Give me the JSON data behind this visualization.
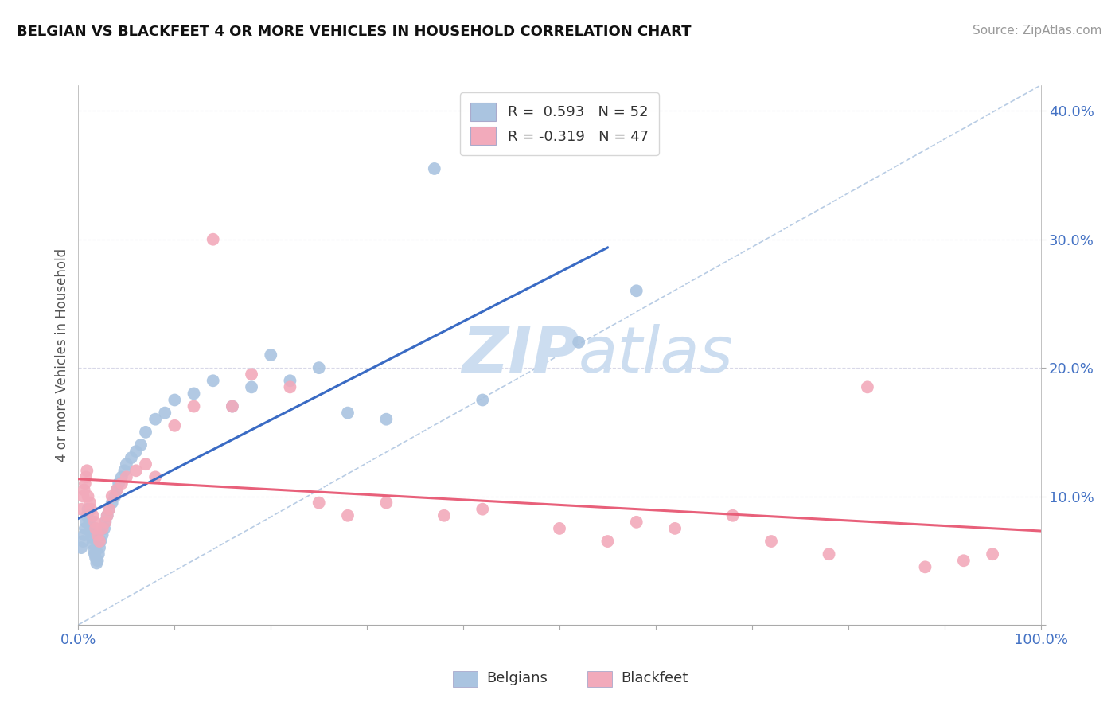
{
  "title": "BELGIAN VS BLACKFEET 4 OR MORE VEHICLES IN HOUSEHOLD CORRELATION CHART",
  "source": "Source: ZipAtlas.com",
  "ylabel": "4 or more Vehicles in Household",
  "xlim": [
    0,
    1.0
  ],
  "ylim": [
    0,
    0.42
  ],
  "xtick_positions": [
    0.0,
    0.1,
    0.2,
    0.3,
    0.4,
    0.5,
    0.6,
    0.7,
    0.8,
    0.9,
    1.0
  ],
  "ytick_positions": [
    0.0,
    0.1,
    0.2,
    0.3,
    0.4
  ],
  "legend_r_belgian": "0.593",
  "legend_n_belgian": "52",
  "legend_r_blackfeet": "-0.319",
  "legend_n_blackfeet": "47",
  "belgian_color": "#aac4e0",
  "blackfeet_color": "#f2aabb",
  "belgian_line_color": "#3a6bc4",
  "blackfeet_line_color": "#e8607a",
  "diag_line_color": "#b8cce4",
  "watermark_color": "#ccddf0",
  "grid_color": "#d8d8e8",
  "belgian_x": [
    0.003,
    0.005,
    0.006,
    0.007,
    0.008,
    0.009,
    0.01,
    0.011,
    0.012,
    0.013,
    0.014,
    0.015,
    0.016,
    0.017,
    0.018,
    0.019,
    0.02,
    0.021,
    0.022,
    0.023,
    0.025,
    0.027,
    0.028,
    0.03,
    0.032,
    0.035,
    0.038,
    0.04,
    0.042,
    0.045,
    0.048,
    0.05,
    0.055,
    0.06,
    0.065,
    0.07,
    0.08,
    0.09,
    0.1,
    0.12,
    0.14,
    0.16,
    0.18,
    0.2,
    0.22,
    0.25,
    0.28,
    0.32,
    0.37,
    0.42,
    0.52,
    0.58
  ],
  "belgian_y": [
    0.06,
    0.065,
    0.07,
    0.075,
    0.08,
    0.085,
    0.09,
    0.082,
    0.078,
    0.072,
    0.068,
    0.063,
    0.058,
    0.055,
    0.052,
    0.048,
    0.05,
    0.055,
    0.06,
    0.065,
    0.07,
    0.075,
    0.08,
    0.085,
    0.09,
    0.095,
    0.1,
    0.105,
    0.11,
    0.115,
    0.12,
    0.125,
    0.13,
    0.135,
    0.14,
    0.15,
    0.16,
    0.165,
    0.175,
    0.18,
    0.19,
    0.17,
    0.185,
    0.21,
    0.19,
    0.2,
    0.165,
    0.16,
    0.355,
    0.175,
    0.22,
    0.26
  ],
  "blackfeet_x": [
    0.003,
    0.005,
    0.006,
    0.007,
    0.008,
    0.009,
    0.01,
    0.012,
    0.013,
    0.015,
    0.017,
    0.018,
    0.02,
    0.022,
    0.025,
    0.028,
    0.03,
    0.032,
    0.035,
    0.04,
    0.045,
    0.05,
    0.06,
    0.07,
    0.08,
    0.1,
    0.12,
    0.14,
    0.16,
    0.18,
    0.22,
    0.25,
    0.28,
    0.32,
    0.38,
    0.42,
    0.5,
    0.55,
    0.58,
    0.62,
    0.68,
    0.72,
    0.78,
    0.82,
    0.88,
    0.92,
    0.95
  ],
  "blackfeet_y": [
    0.09,
    0.1,
    0.105,
    0.11,
    0.115,
    0.12,
    0.1,
    0.095,
    0.09,
    0.085,
    0.08,
    0.075,
    0.07,
    0.065,
    0.075,
    0.08,
    0.085,
    0.09,
    0.1,
    0.105,
    0.11,
    0.115,
    0.12,
    0.125,
    0.115,
    0.155,
    0.17,
    0.3,
    0.17,
    0.195,
    0.185,
    0.095,
    0.085,
    0.095,
    0.085,
    0.09,
    0.075,
    0.065,
    0.08,
    0.075,
    0.085,
    0.065,
    0.055,
    0.185,
    0.045,
    0.05,
    0.055
  ]
}
